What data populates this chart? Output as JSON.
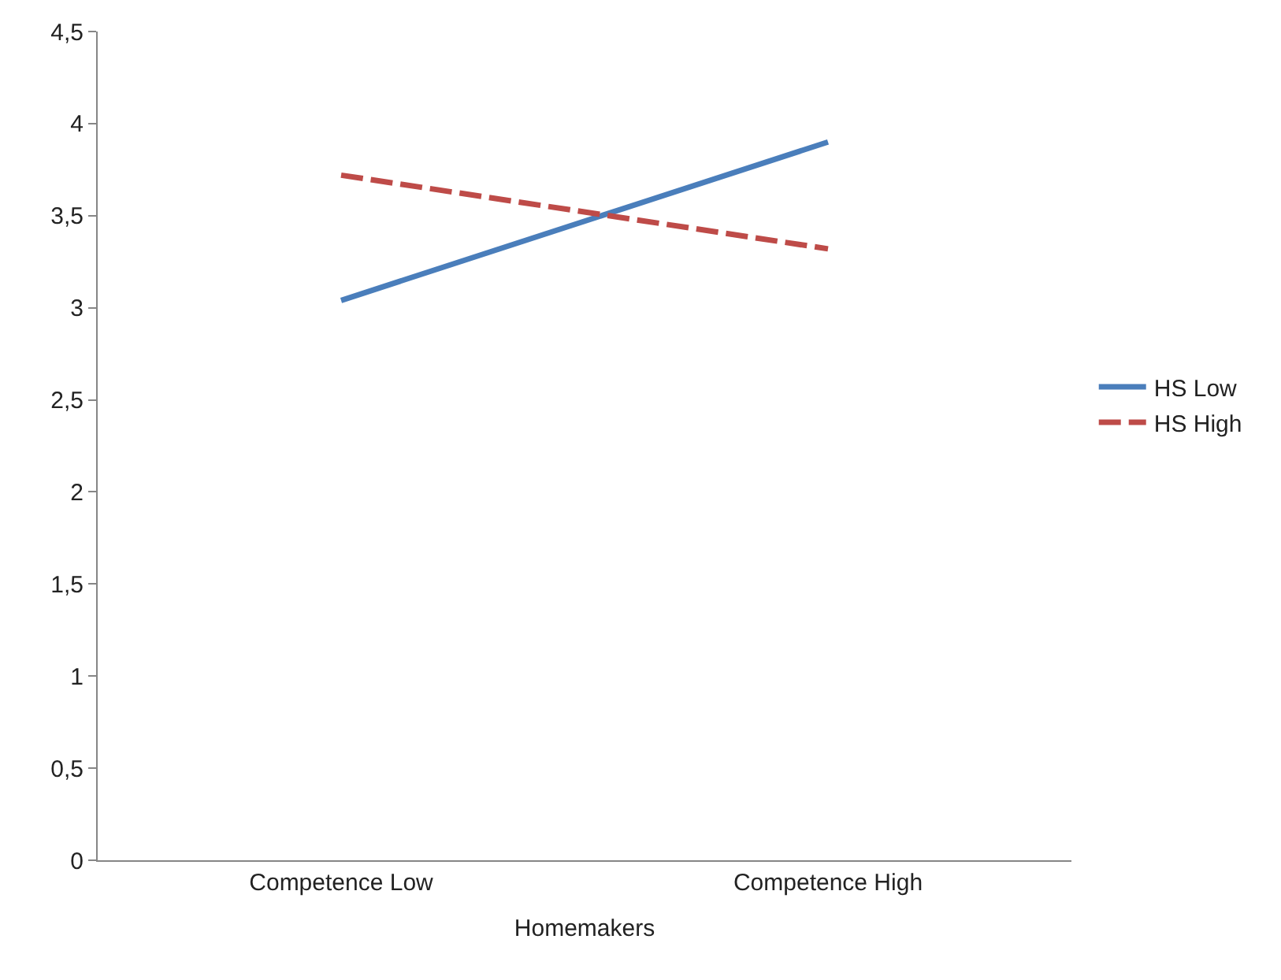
{
  "chart_data": {
    "type": "line",
    "xlabel": "Homemakers",
    "categories": [
      "Competence Low",
      "Competence High"
    ],
    "series": [
      {
        "name": "HS Low",
        "color": "#4a7ebb",
        "values": [
          3.04,
          3.9
        ],
        "line_style": "solid"
      },
      {
        "name": "HS High",
        "color": "#be4b48",
        "values": [
          3.72,
          3.32
        ],
        "line_style": "dashed"
      }
    ],
    "ylim": [
      0,
      4.5
    ],
    "yticks": [
      0,
      {
        "value": 0.5,
        "label": "0,5"
      },
      1,
      {
        "value": 1.5,
        "label": "1,5"
      },
      2,
      {
        "value": 2.5,
        "label": "2,5"
      },
      3,
      {
        "value": 3.5,
        "label": "3,5"
      },
      4,
      {
        "value": 4.5,
        "label": "4,5"
      }
    ],
    "grid": false,
    "legend": "right",
    "marker": "none"
  }
}
